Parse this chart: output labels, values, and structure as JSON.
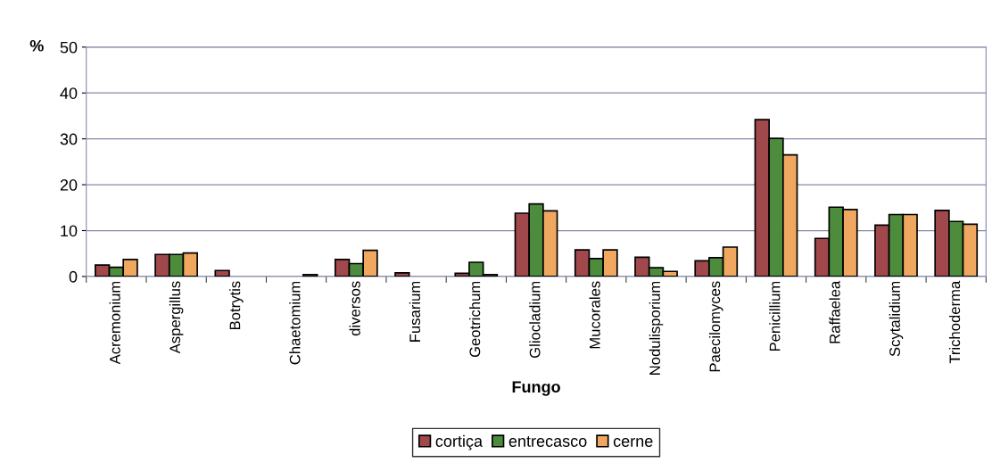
{
  "chart_data": {
    "type": "bar",
    "xlabel": "Fungo",
    "ylabel": "%",
    "categories": [
      "Acremonium",
      "Aspergillus",
      "Botrytis",
      "Chaetomium",
      "diversos",
      "Fusarium",
      "Geotrichum",
      "Gliocladium",
      "Mucorales",
      "Nodulisporium",
      "Paecilomyces",
      "Penicillium",
      "Raffaelea",
      "Scytalidium",
      "Trichoderma"
    ],
    "series": [
      {
        "name": "cortiça",
        "color": "#a0484c",
        "values": [
          2.5,
          4.8,
          1.3,
          null,
          3.7,
          0.8,
          0.7,
          13.8,
          5.8,
          4.2,
          3.4,
          34.2,
          8.3,
          11.2,
          14.4
        ]
      },
      {
        "name": "entrecasco",
        "color": "#4c8c3c",
        "values": [
          2,
          4.8,
          null,
          null,
          2.8,
          null,
          3.1,
          15.8,
          3.9,
          1.9,
          4.1,
          30.1,
          15.1,
          13.5,
          12.0
        ]
      },
      {
        "name": "cerne",
        "color": "#f0a860",
        "values": [
          3.7,
          5.1,
          null,
          0.4,
          5.7,
          null,
          0.4,
          14.3,
          5.8,
          1.1,
          6.4,
          26.5,
          14.6,
          13.5,
          11.4
        ]
      }
    ],
    "ylim": [
      0,
      50
    ],
    "yticks": [
      0,
      10,
      20,
      30,
      40,
      50
    ],
    "grid": "y",
    "legend": "bottom"
  }
}
